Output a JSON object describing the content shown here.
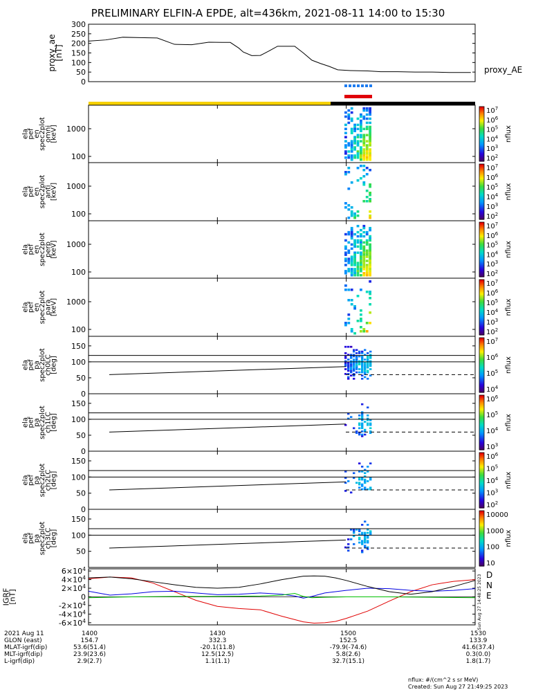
{
  "title": "PRELIMINARY ELFIN-A EPDE, alt=436km, 2021-08-11 14:00 to 15:30",
  "colors": {
    "daylight": "#f5d000",
    "night": "#000000",
    "sci_zone_blue": "#1e7cf0",
    "sci_zone_red": "#e0000a",
    "D": "#e00000",
    "N": "#0000e0",
    "E": "#00c000"
  },
  "chart_data": [
    {
      "type": "line",
      "id": "proxy_ae",
      "ylabel": [
        "proxy_ae",
        "[nT]"
      ],
      "yticks": [
        "300",
        "250",
        "200",
        "150",
        "100",
        "50",
        "0"
      ],
      "ylim": [
        0,
        300
      ],
      "x_minutes": [
        0,
        8,
        16,
        24,
        32,
        40,
        48,
        56,
        62,
        66,
        70,
        72,
        76,
        80,
        84,
        88,
        92,
        96,
        100,
        104,
        108,
        112,
        116,
        122,
        130,
        136,
        144,
        152,
        160,
        168,
        178
      ],
      "values": [
        212,
        218,
        232,
        230,
        228,
        195,
        193,
        206,
        205,
        205,
        175,
        155,
        136,
        137,
        160,
        185,
        185,
        185,
        150,
        112,
        95,
        80,
        62,
        58,
        56,
        52,
        52,
        50,
        50,
        48,
        48
      ],
      "legend": "proxy_AE"
    },
    {
      "type": "heatmap",
      "id": "ela_pef_en_spec2plot_omni",
      "ylabel": [
        "ela",
        "pef",
        "en",
        "spec2plot",
        "omni",
        "[keV]"
      ],
      "yticks": [
        "1000",
        "100"
      ],
      "colorbar": {
        "label": "nflux",
        "ticks": [
          "10^7",
          "10^6",
          "10^5",
          "10^4",
          "10^3",
          "10^2"
        ]
      }
    },
    {
      "type": "heatmap",
      "id": "ela_pef_en_spec2plot_anti",
      "ylabel": [
        "ela",
        "pef",
        "en",
        "spec2plot",
        "anti",
        "[keV]"
      ],
      "yticks": [
        "1000",
        "100"
      ],
      "colorbar": {
        "label": "nflux",
        "ticks": [
          "10^7",
          "10^6",
          "10^5",
          "10^4",
          "10^3",
          "10^2"
        ]
      }
    },
    {
      "type": "heatmap",
      "id": "ela_pef_en_spec2plot_perp",
      "ylabel": [
        "ela",
        "pef",
        "en",
        "spec2plot",
        "perp",
        "[keV]"
      ],
      "yticks": [
        "1000",
        "100"
      ],
      "colorbar": {
        "label": "nflux",
        "ticks": [
          "10^7",
          "10^6",
          "10^5",
          "10^4",
          "10^3",
          "10^2"
        ]
      }
    },
    {
      "type": "heatmap",
      "id": "ela_pef_en_spec2plot_para",
      "ylabel": [
        "ela",
        "pef",
        "en",
        "spec2plot",
        "para",
        "[keV]"
      ],
      "yticks": [
        "1000",
        "100"
      ],
      "colorbar": {
        "label": "nflux",
        "ticks": [
          "10^7",
          "10^6",
          "10^5",
          "10^4",
          "10^3",
          "10^2"
        ]
      }
    },
    {
      "type": "heatmap",
      "id": "ela_pef_pa_spec2plot_ch0LC",
      "ylabel": [
        "ela",
        "pef",
        "pa",
        "spec2plot",
        "ch0LC",
        "[deg]"
      ],
      "yticks": [
        "150",
        "100",
        "50",
        "0"
      ],
      "colorbar": {
        "label": "nflux",
        "ticks": [
          "10^7",
          "10^6",
          "10^5",
          "10^4"
        ]
      }
    },
    {
      "type": "heatmap",
      "id": "ela_pef_pa_spec2plot_ch1LC",
      "ylabel": [
        "ela",
        "pef",
        "pa",
        "spec2plot",
        "ch1LC",
        "[deg]"
      ],
      "yticks": [
        "150",
        "100",
        "50",
        "0"
      ],
      "colorbar": {
        "label": "nflux",
        "ticks": [
          "10^6",
          "10^5",
          "10^4",
          "10^3"
        ]
      }
    },
    {
      "type": "heatmap",
      "id": "ela_pef_pa_spec2plot_ch2LC",
      "ylabel": [
        "ela",
        "pef",
        "pa",
        "spec2plot",
        "ch2LC",
        "[deg]"
      ],
      "yticks": [
        "150",
        "100",
        "50",
        "0"
      ],
      "colorbar": {
        "label": "nflux",
        "ticks": [
          "10^6",
          "10^5",
          "10^4",
          "10^3",
          "10^2"
        ]
      }
    },
    {
      "type": "heatmap",
      "id": "ela_pef_pa_spec2plot_ch3LC",
      "ylabel": [
        "ela",
        "pef",
        "pa",
        "spec2plot",
        "ch3LC",
        "[deg]"
      ],
      "yticks": [
        "150",
        "100",
        "50"
      ],
      "colorbar": {
        "label": "nflux",
        "ticks": [
          "10000",
          "1000",
          "100",
          "10"
        ]
      }
    },
    {
      "type": "line",
      "id": "igrf",
      "ylabel": [
        "IGRF",
        "[nT]"
      ],
      "yticks": [
        "6×10^4",
        "4×10^4",
        "2×10^4",
        "0",
        "-2×10^4",
        "-4×10^4",
        "-6×10^4"
      ],
      "ylim": [
        -65000,
        65000
      ],
      "series": [
        {
          "name": "D",
          "color": "#e00000",
          "x_minutes": [
            0,
            10,
            20,
            30,
            40,
            50,
            60,
            70,
            80,
            90,
            100,
            105,
            110,
            115,
            120,
            130,
            140,
            150,
            160,
            170,
            180
          ],
          "values": [
            42000,
            46000,
            44000,
            32000,
            12000,
            -8000,
            -22000,
            -27000,
            -30000,
            -45000,
            -58000,
            -61000,
            -60000,
            -57000,
            -50000,
            -33000,
            -10000,
            12000,
            28000,
            36000,
            40000
          ]
        },
        {
          "name": "N",
          "color": "#0000e0",
          "x_minutes": [
            0,
            10,
            20,
            30,
            40,
            50,
            60,
            70,
            80,
            90,
            96,
            100,
            104,
            110,
            120,
            130,
            140,
            150,
            160,
            170,
            180
          ],
          "values": [
            13000,
            4000,
            7000,
            12000,
            13000,
            9000,
            5000,
            6000,
            9000,
            6000,
            2000,
            -3000,
            1000,
            9000,
            15000,
            20000,
            19000,
            15000,
            13000,
            15000,
            19000
          ]
        },
        {
          "name": "E",
          "color": "#00c000",
          "x_minutes": [
            0,
            20,
            40,
            60,
            80,
            90,
            96,
            100,
            104,
            110,
            120,
            140,
            160,
            180
          ],
          "values": [
            -2000,
            0,
            1000,
            1000,
            2000,
            4000,
            8000,
            1000,
            -2000,
            -1000,
            0,
            0,
            -1000,
            -2000
          ]
        },
        {
          "name": "",
          "color": "#000000",
          "x_minutes": [
            0,
            10,
            20,
            30,
            40,
            50,
            60,
            70,
            80,
            90,
            100,
            105,
            110,
            115,
            120,
            130,
            140,
            150,
            160,
            170,
            180
          ],
          "values": [
            44000,
            46000,
            42000,
            35000,
            28000,
            22000,
            20000,
            22000,
            30000,
            40000,
            48000,
            48500,
            48000,
            44000,
            38000,
            24000,
            12000,
            6000,
            12000,
            24000,
            38000
          ]
        }
      ],
      "legend": [
        "D",
        "N",
        "E"
      ],
      "sidebar_text": "Sun Aug 27 14:48:25 2023"
    }
  ],
  "footer": {
    "row_labels": [
      "2021 Aug 11",
      "GLON (east)",
      "MLAT-igrf(dip)",
      "MLT-igrf(dip)",
      "L-igrf(dip)"
    ],
    "columns": [
      [
        "1400",
        "154.7",
        "53.6(51.4)",
        "23.9(23.6)",
        "2.9(2.7)"
      ],
      [
        "1430",
        "332.3",
        "-20.1(11.8)",
        "12.5(12.5)",
        "1.1(1.1)"
      ],
      [
        "1500",
        "152.5",
        "-79.9(-74.6)",
        "5.8(2.6)",
        "32.7(15.1)"
      ],
      [
        "1530",
        "133.9",
        "41.6(37.4)",
        "0.3(0.0)",
        "1.8(1.7)"
      ]
    ],
    "units_note": "nflux: #/(cm^2 s sr MeV)",
    "created": "Created: Sun Aug 27 21:49:25 2023"
  }
}
